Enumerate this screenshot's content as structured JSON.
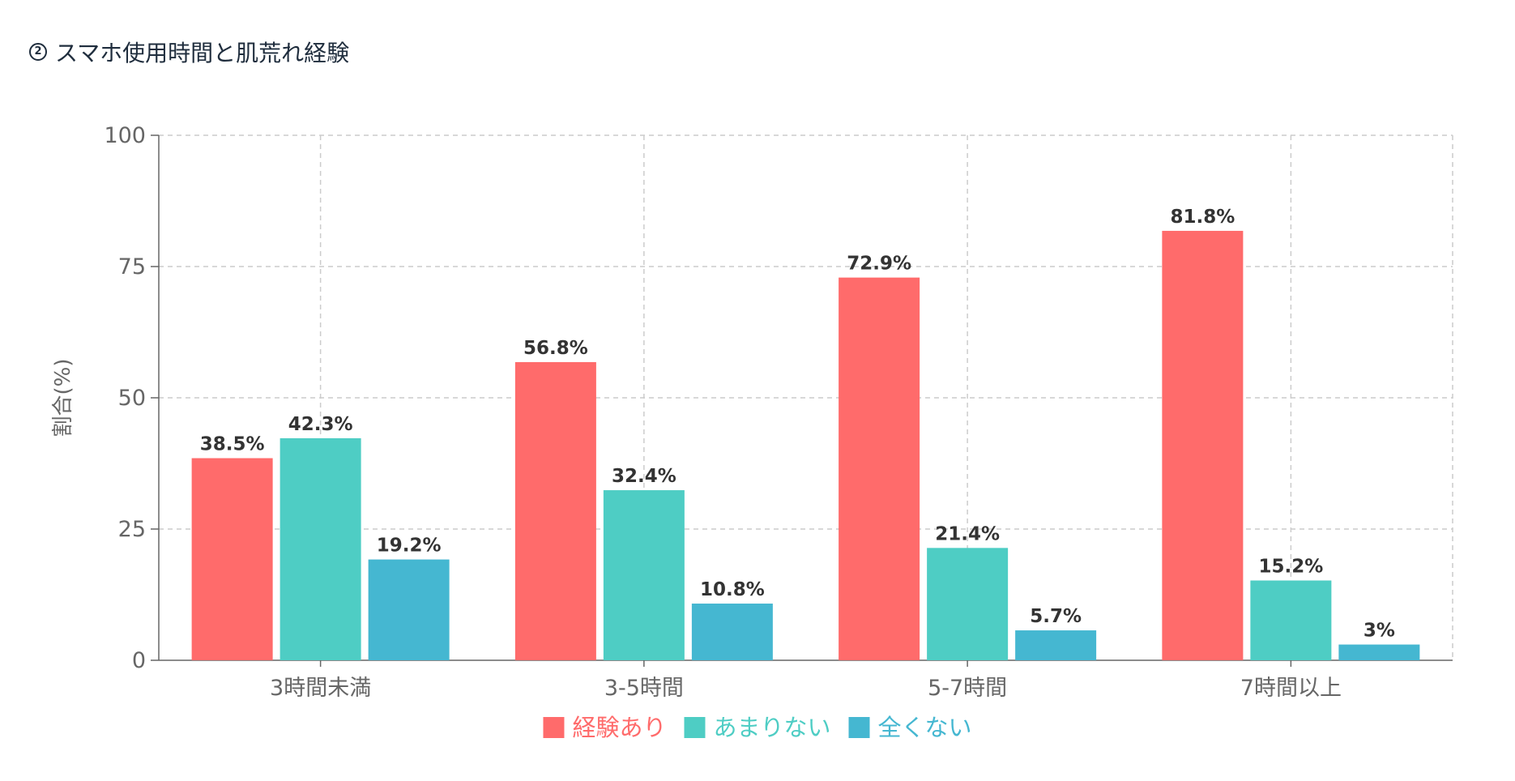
{
  "header": {
    "number": "2",
    "title": "スマホ使用時間と肌荒れ経験"
  },
  "chart_data": {
    "type": "bar",
    "categories": [
      "3時間未満",
      "3-5時間",
      "5-7時間",
      "7時間以上"
    ],
    "series": [
      {
        "name": "経験あり",
        "color": "#ff6b6b",
        "values": [
          38.5,
          56.8,
          72.9,
          81.8
        ]
      },
      {
        "name": "あまりない",
        "color": "#4ecdc4",
        "values": [
          42.3,
          32.4,
          21.4,
          15.2
        ]
      },
      {
        "name": "全くない",
        "color": "#45b7d1",
        "values": [
          19.2,
          10.8,
          5.7,
          3
        ]
      }
    ],
    "value_suffix": "%",
    "ylabel": "割合(%)",
    "ylim": [
      0,
      100
    ],
    "yticks": [
      0,
      25,
      50,
      75,
      100
    ],
    "grid": true,
    "legend_position": "bottom"
  }
}
